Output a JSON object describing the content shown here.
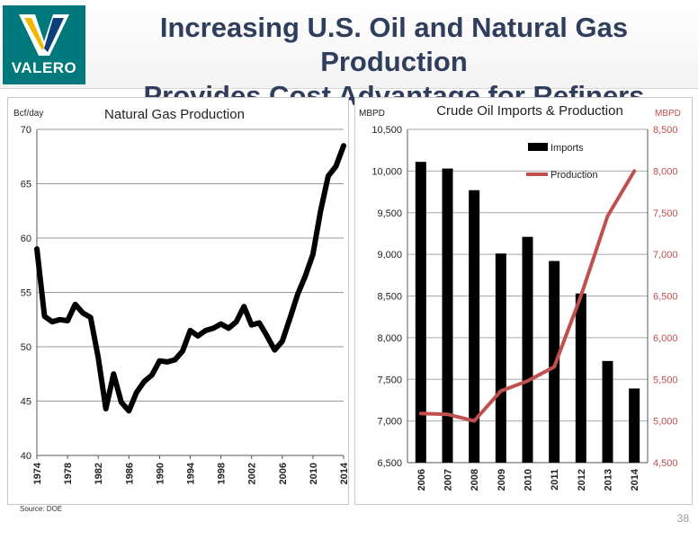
{
  "header": {
    "logo_text": "VALERO",
    "title_line1": "Increasing U.S. Oil and Natural Gas Production",
    "title_line2": "Provides Cost Advantage for Refiners"
  },
  "footer": {
    "source": "Source:  DOE",
    "page_number": "38"
  },
  "colors": {
    "brand_teal": "#00797d",
    "title_navy": "#2f3e5c",
    "production_red": "#c0504d"
  },
  "chart_data": [
    {
      "type": "line",
      "title": "Natural Gas Production",
      "ylabel": "Bcf/day",
      "ylim": [
        40,
        70
      ],
      "yticks": [
        40,
        45,
        50,
        55,
        60,
        65,
        70
      ],
      "xlim": [
        1974,
        2014
      ],
      "xticks": [
        1974,
        1978,
        1982,
        1986,
        1990,
        1994,
        1998,
        2002,
        2006,
        2010,
        2014
      ],
      "grid": true,
      "series": [
        {
          "x": [
            1974,
            1975,
            1976,
            1977,
            1978,
            1979,
            1980,
            1981,
            1982,
            1983,
            1984,
            1985,
            1986,
            1987,
            1988,
            1989,
            1990,
            1991,
            1992,
            1993,
            1994,
            1995,
            1996,
            1997,
            1998,
            1999,
            2000,
            2001,
            2002,
            2003,
            2004,
            2005,
            2006,
            2007,
            2008,
            2009,
            2010,
            2011,
            2012,
            2013,
            2014
          ],
          "y": [
            59.0,
            52.8,
            52.3,
            52.5,
            52.4,
            53.9,
            53.1,
            52.7,
            49.0,
            44.3,
            47.5,
            44.9,
            44.1,
            45.8,
            46.8,
            47.4,
            48.7,
            48.6,
            48.8,
            49.6,
            51.5,
            51.0,
            51.5,
            51.7,
            52.1,
            51.7,
            52.3,
            53.7,
            52.0,
            52.2,
            51.0,
            49.7,
            50.5,
            52.6,
            54.8,
            56.5,
            58.5,
            62.5,
            65.7,
            66.6,
            68.5
          ]
        }
      ]
    },
    {
      "type": "bar+line",
      "title": "Crude Oil Imports & Production",
      "ylabel_left": "MBPD",
      "ylabel_right": "MBPD",
      "ylim_left": [
        6500,
        10500
      ],
      "yticks_left": [
        "6,500",
        "7,000",
        "7,500",
        "8,000",
        "8,500",
        "9,000",
        "9,500",
        "10,000",
        "10,500"
      ],
      "ylim_right": [
        4500,
        8500
      ],
      "yticks_right": [
        "4,500",
        "5,000",
        "5,500",
        "6,000",
        "6,500",
        "7,000",
        "7,500",
        "8,000",
        "8,500"
      ],
      "categories": [
        "2006",
        "2007",
        "2008",
        "2009",
        "2010",
        "2011",
        "2012",
        "2013",
        "2014"
      ],
      "legend_position": "top-center",
      "grid": true,
      "series": [
        {
          "name": "Imports",
          "axis": "left",
          "type": "bar",
          "values": [
            10110,
            10030,
            9770,
            9010,
            9210,
            8920,
            8530,
            7720,
            7390
          ]
        },
        {
          "name": "Production",
          "axis": "right",
          "type": "line",
          "values": [
            5090,
            5080,
            5000,
            5360,
            5480,
            5650,
            6500,
            7460,
            8000
          ]
        }
      ]
    }
  ]
}
